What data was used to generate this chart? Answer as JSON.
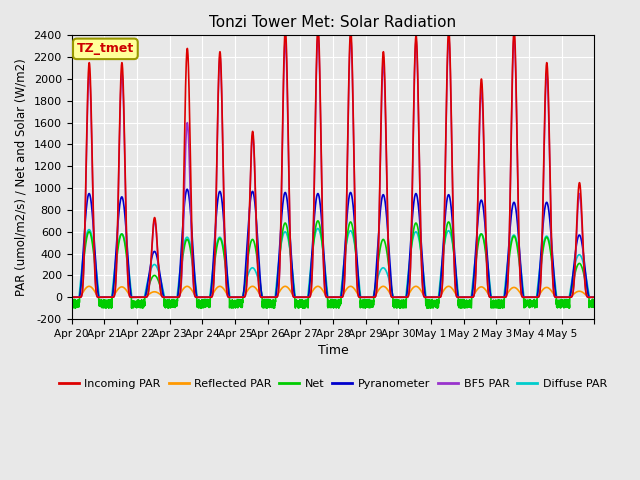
{
  "title": "Tonzi Tower Met: Solar Radiation",
  "ylabel": "PAR (umol/m2/s) / Net and Solar (W/m2)",
  "xlabel": "Time",
  "ylim": [
    -200,
    2400
  ],
  "yticks": [
    -200,
    0,
    200,
    400,
    600,
    800,
    1000,
    1200,
    1400,
    1600,
    1800,
    2000,
    2200,
    2400
  ],
  "xtick_labels": [
    "Apr 20",
    "Apr 21",
    "Apr 22",
    "Apr 23",
    "Apr 24",
    "Apr 25",
    "Apr 26",
    "Apr 27",
    "Apr 28",
    "Apr 29",
    "Apr 30",
    "May 1",
    "May 2",
    "May 3",
    "May 4",
    "May 5"
  ],
  "series": {
    "Incoming PAR": {
      "color": "#dd0000",
      "lw": 1.2
    },
    "Reflected PAR": {
      "color": "#ff9900",
      "lw": 1.2
    },
    "Net": {
      "color": "#00cc00",
      "lw": 1.2
    },
    "Pyranometer": {
      "color": "#0000cc",
      "lw": 1.2
    },
    "BF5 PAR": {
      "color": "#9933cc",
      "lw": 1.2
    },
    "Diffuse PAR": {
      "color": "#00cccc",
      "lw": 1.2
    }
  },
  "annotation_text": "TZ_tmet",
  "annotation_color": "#cc0000",
  "annotation_bg": "#ffff99",
  "background_color": "#e8e8e8",
  "plot_bg": "#e8e8e8",
  "grid_color": "#ffffff",
  "daily_peaks_incoming": [
    2150,
    2150,
    730,
    2280,
    2250,
    1520,
    2450,
    2480,
    2450,
    2250,
    2400,
    2450,
    2000,
    2450,
    2150,
    1050
  ],
  "daily_peaks_bf5": [
    2050,
    2050,
    700,
    1600,
    2200,
    1480,
    2350,
    2400,
    2380,
    2150,
    2350,
    2380,
    1900,
    2380,
    2050,
    950
  ],
  "daily_peaks_pyranometer": [
    950,
    920,
    420,
    990,
    970,
    970,
    960,
    950,
    960,
    940,
    950,
    940,
    890,
    870,
    870,
    570
  ],
  "daily_peaks_diffuse": [
    620,
    580,
    300,
    550,
    550,
    270,
    600,
    630,
    610,
    270,
    600,
    610,
    580,
    570,
    560,
    390
  ],
  "daily_peaks_net": [
    600,
    580,
    200,
    530,
    540,
    530,
    680,
    700,
    690,
    530,
    680,
    690,
    580,
    560,
    550,
    310
  ],
  "daily_peaks_reflected": [
    100,
    95,
    50,
    100,
    100,
    100,
    100,
    100,
    100,
    100,
    100,
    100,
    95,
    90,
    90,
    55
  ],
  "night_net_min": -100,
  "night_net_max": -20
}
